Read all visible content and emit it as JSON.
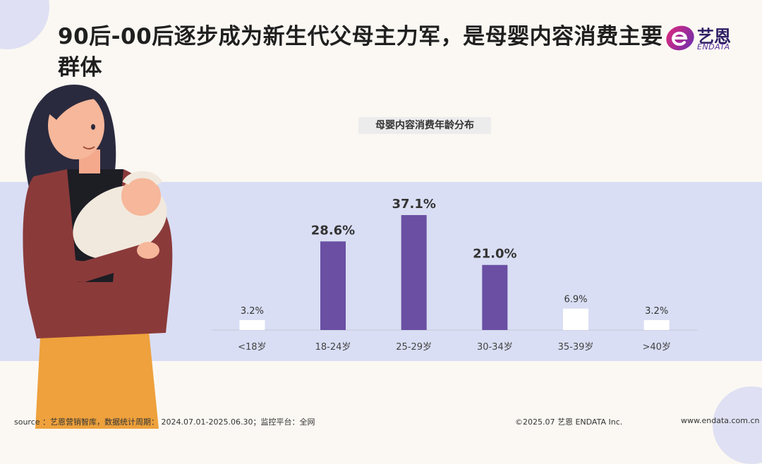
{
  "header": {
    "title": "90后-00后逐步成为新生代父母主力军，是母婴内容消费主要群体",
    "logo_cn": "艺恩",
    "logo_en": "ENDATA"
  },
  "chart_data": {
    "type": "bar",
    "title": "母婴内容消费年龄分布",
    "categories": [
      "<18岁",
      "18-24岁",
      "25-29岁",
      "30-34岁",
      "35-39岁",
      ">40岁"
    ],
    "values": [
      3.2,
      28.6,
      37.1,
      21.0,
      6.9,
      3.2
    ],
    "labels": [
      "3.2%",
      "28.6%",
      "37.1%",
      "21.0%",
      "6.9%",
      "3.2%"
    ],
    "xlabel": "",
    "ylabel": "",
    "ylim": [
      0,
      40
    ],
    "grid": false,
    "colors": {
      "highlight": "#6a4fa3",
      "other": "#ffffff"
    }
  },
  "footer": {
    "source": "source ：艺恩营销智库，数据统计周期： 2024.07.01-2025.06.30；监控平台：全网",
    "copyright": "©2025.07  艺恩 ENDATA Inc.",
    "url": "www.endata.com.cn"
  }
}
